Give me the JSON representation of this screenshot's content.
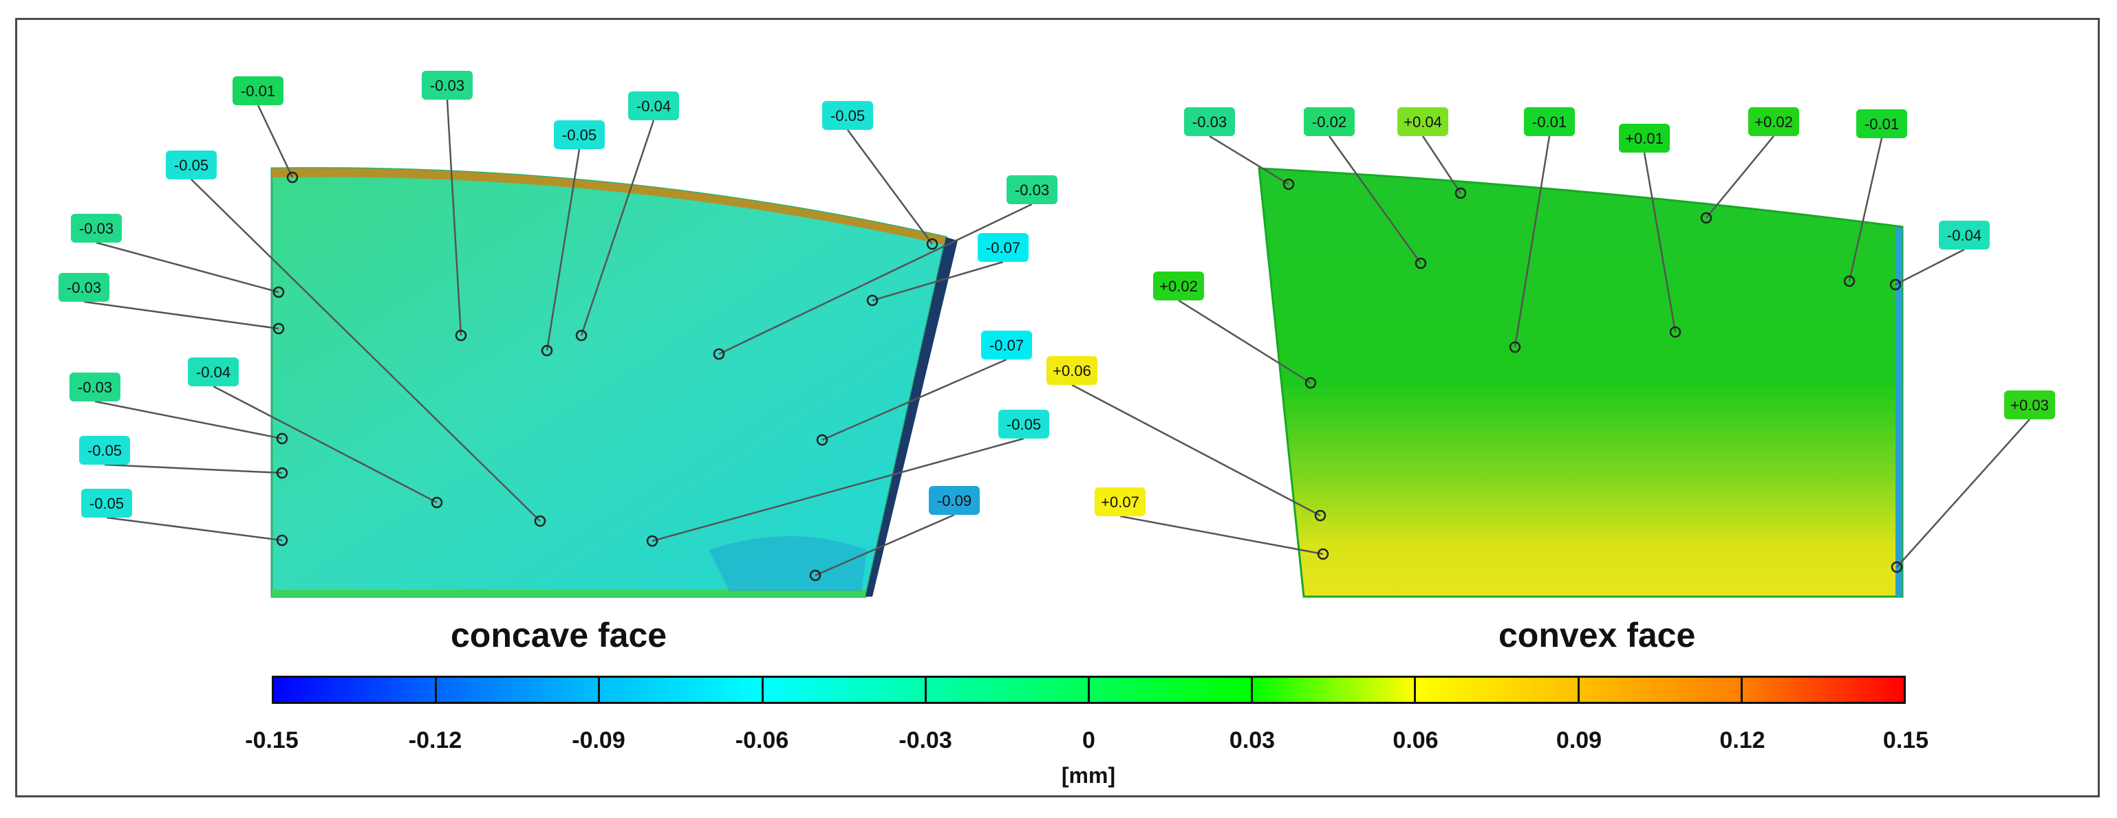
{
  "faces": {
    "concave": {
      "title": "concave face",
      "base_color": "#33d6b0",
      "callouts": [
        {
          "label": "-0.01",
          "color": "#17d65a"
        },
        {
          "label": "-0.03",
          "color": "#22d98a"
        },
        {
          "label": "-0.05",
          "color": "#1ae3d6"
        },
        {
          "label": "-0.04",
          "color": "#1ee0b8"
        },
        {
          "label": "-0.05",
          "color": "#1ae3d6"
        },
        {
          "label": "-0.03",
          "color": "#22d98a"
        },
        {
          "label": "-0.07",
          "color": "#00ecf2"
        },
        {
          "label": "-0.05",
          "color": "#1ae3d6"
        },
        {
          "label": "-0.03",
          "color": "#22d98a"
        },
        {
          "label": "-0.03",
          "color": "#22d98a"
        },
        {
          "label": "-0.04",
          "color": "#1ee0b8"
        },
        {
          "label": "-0.07",
          "color": "#00ecf2"
        },
        {
          "label": "-0.03",
          "color": "#22d98a"
        },
        {
          "label": "-0.05",
          "color": "#1ae3d6"
        },
        {
          "label": "-0.05",
          "color": "#1ae3d6"
        },
        {
          "label": "-0.05",
          "color": "#1ae3d6"
        },
        {
          "label": "-0.09",
          "color": "#1ea6d8"
        }
      ]
    },
    "convex": {
      "title": "convex face",
      "base_color": "#2fd01a",
      "callouts": [
        {
          "label": "-0.03",
          "color": "#22d98a"
        },
        {
          "label": "-0.02",
          "color": "#22d96e"
        },
        {
          "label": "+0.04",
          "color": "#7ee022"
        },
        {
          "label": "-0.01",
          "color": "#17d62a"
        },
        {
          "label": "+0.01",
          "color": "#14d41e"
        },
        {
          "label": "+0.02",
          "color": "#22d41a"
        },
        {
          "label": "-0.01",
          "color": "#17d62a"
        },
        {
          "label": "-0.04",
          "color": "#1ee0b8"
        },
        {
          "label": "+0.02",
          "color": "#22d41a"
        },
        {
          "label": "+0.06",
          "color": "#f2ea10"
        },
        {
          "label": "+0.07",
          "color": "#f6f010"
        },
        {
          "label": "+0.03",
          "color": "#2fd41a"
        }
      ]
    }
  },
  "colorbar": {
    "unit": "[mm]",
    "ticks": [
      "-0.15",
      "-0.12",
      "-0.09",
      "-0.06",
      "-0.03",
      "0",
      "0.03",
      "0.06",
      "0.09",
      "0.12",
      "0.15"
    ],
    "stops": [
      "#0000ff",
      "#0066ff",
      "#00bfff",
      "#00ffff",
      "#00ffaa",
      "#00ff55",
      "#00ff00",
      "#ffff00",
      "#ffbf00",
      "#ff7f00",
      "#ff0000"
    ]
  }
}
